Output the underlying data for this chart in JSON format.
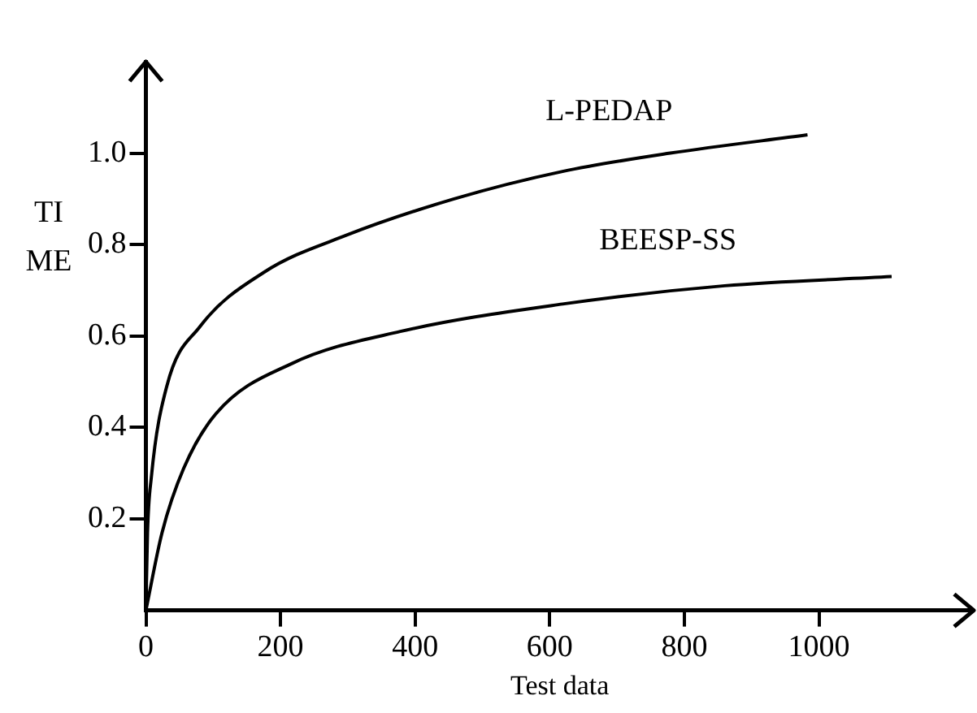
{
  "chart_data": {
    "type": "line",
    "xlabel": "Test data",
    "ylabel": "TI ME",
    "series": [
      {
        "name": "L-PEDAP",
        "color": "#000000",
        "x": [
          0,
          2.4,
          8,
          31,
          80,
          176,
          297,
          458,
          619,
          779,
          983
        ],
        "values": [
          0,
          0.17,
          0.29,
          0.49,
          0.62,
          0.74,
          0.82,
          0.9,
          0.96,
          1.0,
          1.04
        ]
      },
      {
        "name": "BEESP-SS",
        "color": "#000000",
        "x": [
          0,
          24,
          56,
          104,
          217,
          378,
          619,
          860,
          1108
        ],
        "values": [
          0,
          0.17,
          0.31,
          0.43,
          0.54,
          0.61,
          0.67,
          0.71,
          0.73
        ]
      }
    ],
    "xlim": [
      0,
      1230
    ],
    "xticks": [
      0,
      200,
      400,
      600,
      800,
      1000
    ],
    "ylim": [
      0,
      1.2
    ],
    "yticks": [
      0.2,
      0.4,
      0.6,
      0.8,
      {
        "value": 1,
        "label": "1.0"
      }
    ],
    "grid": false,
    "legend": false,
    "marker": "none",
    "line_style": "solid"
  }
}
